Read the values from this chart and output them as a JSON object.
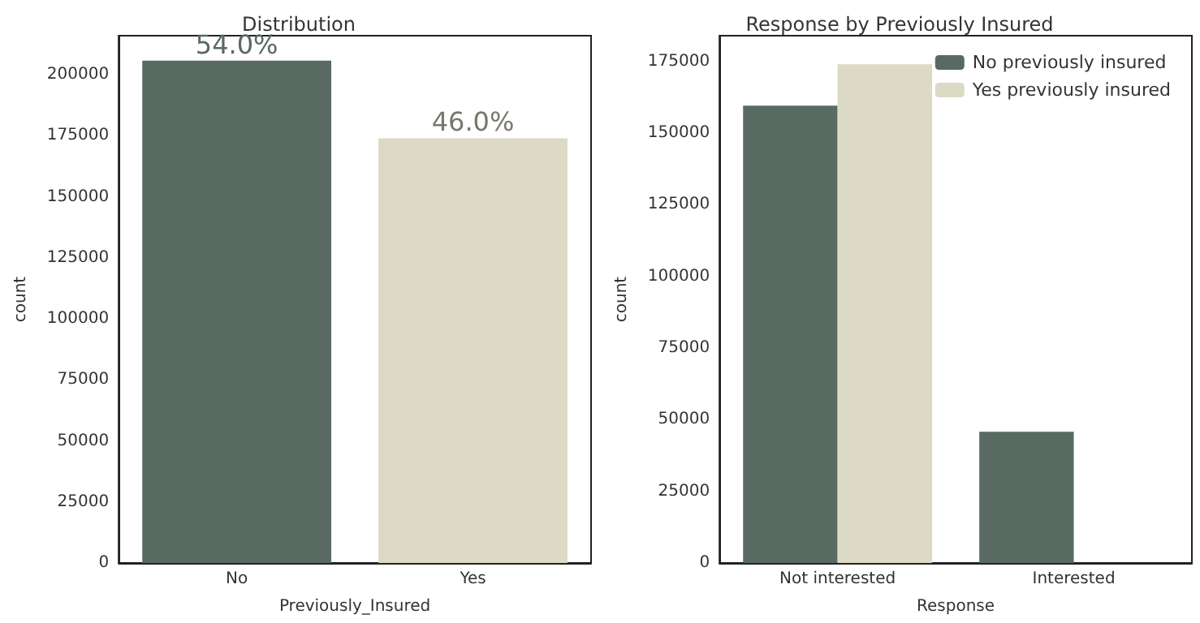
{
  "chart_data": [
    {
      "type": "bar",
      "title": "Distribution",
      "xlabel": "Previously_Insured",
      "ylabel": "count",
      "categories": [
        "No",
        "Yes"
      ],
      "values": [
        205800,
        174000
      ],
      "colors": [
        "#586a62",
        "#dcd9c5"
      ],
      "annotations": [
        {
          "text": "54.0%",
          "x": "No",
          "y": 205800
        },
        {
          "text": "46.0%",
          "x": "Yes",
          "y": 174000
        }
      ],
      "ylim": [
        0,
        216000
      ],
      "yticks": [
        0,
        25000,
        50000,
        75000,
        100000,
        125000,
        150000,
        175000,
        200000
      ],
      "grid": false,
      "legend": false
    },
    {
      "type": "bar",
      "title": "Response by Previously Insured",
      "xlabel": "Response",
      "ylabel": "count",
      "categories": [
        "Not interested",
        "Interested"
      ],
      "series": [
        {
          "name": "No previously insured",
          "color": "#586a62",
          "values": [
            159600,
            45800
          ]
        },
        {
          "name": "Yes previously insured",
          "color": "#dcd9c5",
          "values": [
            174000,
            0
          ]
        }
      ],
      "ylim": [
        0,
        184000
      ],
      "yticks": [
        0,
        25000,
        50000,
        75000,
        100000,
        125000,
        150000,
        175000
      ],
      "grid": false,
      "legend": "top right"
    }
  ]
}
